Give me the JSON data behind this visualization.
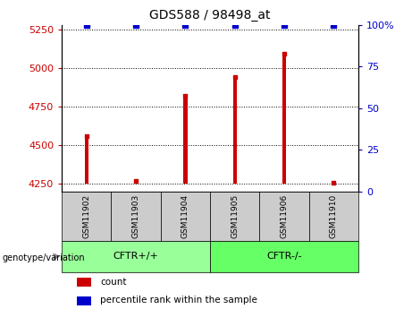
{
  "title": "GDS588 / 98498_at",
  "samples": [
    "GSM11902",
    "GSM11903",
    "GSM11904",
    "GSM11905",
    "GSM11906",
    "GSM11910"
  ],
  "counts": [
    4560,
    4270,
    4820,
    4940,
    5090,
    4260
  ],
  "percentile_ranks": [
    100,
    100,
    100,
    100,
    100,
    100
  ],
  "ylim_left": [
    4200,
    5280
  ],
  "ylim_right": [
    0,
    100
  ],
  "yticks_left": [
    4250,
    4500,
    4750,
    5000,
    5250
  ],
  "yticks_right": [
    0,
    25,
    50,
    75,
    100
  ],
  "ytick_labels_left": [
    "4250",
    "4500",
    "4750",
    "5000",
    "5250"
  ],
  "ytick_labels_right": [
    "0",
    "25",
    "50",
    "75",
    "100%"
  ],
  "bar_color": "#cc0000",
  "dot_color": "#0000cc",
  "red_dot_color": "#cc0000",
  "grid_color": "#000000",
  "groups": [
    {
      "label": "CFTR+/+",
      "indices": [
        0,
        1,
        2
      ],
      "color": "#99ff99"
    },
    {
      "label": "CFTR-/-",
      "indices": [
        3,
        4,
        5
      ],
      "color": "#66ff66"
    }
  ],
  "group_label": "genotype/variation",
  "legend_count_label": "count",
  "legend_percentile_label": "percentile rank within the sample",
  "sample_box_color": "#cccccc",
  "left_tick_color": "#cc0000",
  "right_tick_color": "#0000cc",
  "title_color": "#000000",
  "bar_width": 0.08,
  "bar_bottom": 4250
}
